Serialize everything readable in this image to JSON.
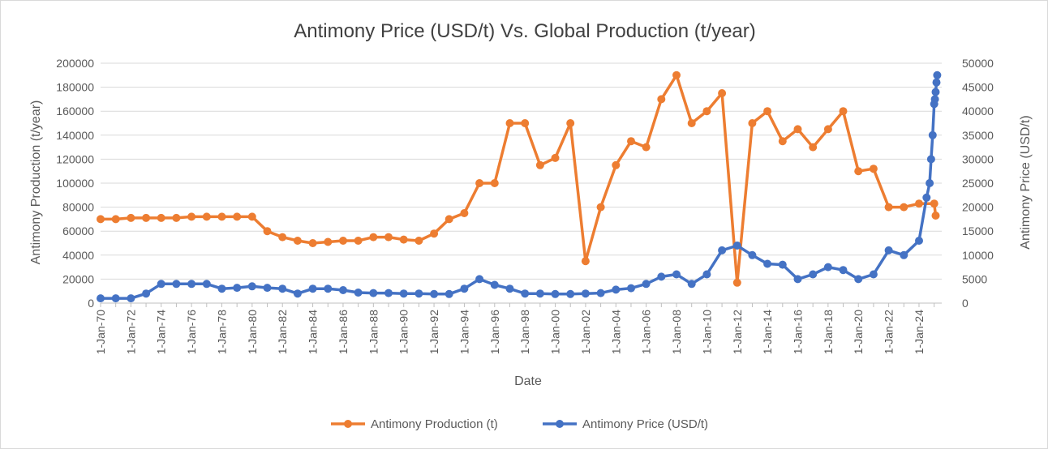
{
  "chart_data": {
    "type": "line",
    "title": "Antimony Price (USD/t) Vs. Global Production (t/year)",
    "xlabel": "Date",
    "ylabel": "Antimony Production (t/year)",
    "y2label": "Antimony Price (USD/t)",
    "ylim": [
      0,
      200000
    ],
    "y2lim": [
      0,
      50000
    ],
    "yticks": [
      "0",
      "20000",
      "40000",
      "60000",
      "80000",
      "100000",
      "120000",
      "140000",
      "160000",
      "180000",
      "200000"
    ],
    "y2ticks": [
      "0",
      "5000",
      "10000",
      "15000",
      "20000",
      "25000",
      "30000",
      "35000",
      "40000",
      "45000",
      "50000"
    ],
    "xlim": [
      1970,
      2025.5
    ],
    "xtick_labels": [
      "1-Jan-70",
      "1-Jan-72",
      "1-Jan-74",
      "1-Jan-76",
      "1-Jan-78",
      "1-Jan-80",
      "1-Jan-82",
      "1-Jan-84",
      "1-Jan-86",
      "1-Jan-88",
      "1-Jan-90",
      "1-Jan-92",
      "1-Jan-94",
      "1-Jan-96",
      "1-Jan-98",
      "1-Jan-00",
      "1-Jan-02",
      "1-Jan-04",
      "1-Jan-06",
      "1-Jan-08",
      "1-Jan-10",
      "1-Jan-12",
      "1-Jan-14",
      "1-Jan-16",
      "1-Jan-18",
      "1-Jan-20",
      "1-Jan-22",
      "1-Jan-24"
    ],
    "grid": true,
    "legend_position": "bottom",
    "series": [
      {
        "name": "Antimony Production (t)",
        "axis": "left",
        "color": "#ED7D31",
        "x": [
          1970,
          1971,
          1972,
          1973,
          1974,
          1975,
          1976,
          1977,
          1978,
          1979,
          1980,
          1981,
          1982,
          1983,
          1984,
          1985,
          1986,
          1987,
          1988,
          1989,
          1990,
          1991,
          1992,
          1993,
          1994,
          1995,
          1996,
          1997,
          1998,
          1999,
          2000,
          2001,
          2002,
          2003,
          2004,
          2005,
          2006,
          2007,
          2008,
          2009,
          2010,
          2011,
          2012,
          2013,
          2014,
          2015,
          2016,
          2017,
          2018,
          2019,
          2020,
          2021,
          2022,
          2023,
          2024,
          2025,
          2025.1
        ],
        "values": [
          70000,
          70000,
          71000,
          71000,
          71000,
          71000,
          72000,
          72000,
          72000,
          72000,
          72000,
          60000,
          55000,
          52000,
          50000,
          51000,
          52000,
          52000,
          55000,
          55000,
          53000,
          52000,
          58000,
          70000,
          75000,
          100000,
          100000,
          150000,
          150000,
          115000,
          121000,
          150000,
          35000,
          80000,
          115000,
          135000,
          130000,
          170000,
          190000,
          150000,
          160000,
          175000,
          17000,
          150000,
          160000,
          135000,
          145000,
          130000,
          145000,
          160000,
          110000,
          112000,
          80000,
          80000,
          83000,
          83000,
          73000
        ]
      },
      {
        "name": "Antimony Price (USD/t)",
        "axis": "right",
        "color": "#4472C4",
        "x": [
          1970,
          1971,
          1972,
          1973,
          1974,
          1975,
          1976,
          1977,
          1978,
          1979,
          1980,
          1981,
          1982,
          1983,
          1984,
          1985,
          1986,
          1987,
          1988,
          1989,
          1990,
          1991,
          1992,
          1993,
          1994,
          1995,
          1996,
          1997,
          1998,
          1999,
          2000,
          2001,
          2002,
          2003,
          2004,
          2005,
          2006,
          2007,
          2008,
          2009,
          2010,
          2011,
          2012,
          2013,
          2014,
          2015,
          2016,
          2017,
          2018,
          2019,
          2020,
          2021,
          2022,
          2023,
          2024,
          2024.5,
          2024.7,
          2024.8,
          2024.9,
          2025.0,
          2025.05,
          2025.1,
          2025.15,
          2025.2
        ],
        "values": [
          1000,
          1000,
          1000,
          2000,
          4000,
          4000,
          4000,
          4000,
          3000,
          3200,
          3500,
          3200,
          3000,
          2000,
          3000,
          3000,
          2700,
          2200,
          2100,
          2100,
          2000,
          2000,
          1900,
          1900,
          3000,
          5000,
          3800,
          3000,
          2000,
          2000,
          1900,
          1900,
          2000,
          2100,
          2800,
          3100,
          4000,
          5500,
          6000,
          4000,
          6000,
          11000,
          12000,
          10000,
          8200,
          8000,
          5000,
          6000,
          7500,
          6900,
          5000,
          6000,
          11000,
          10000,
          13000,
          22000,
          25000,
          30000,
          35000,
          41500,
          42500,
          44000,
          46000,
          47500
        ]
      }
    ]
  }
}
